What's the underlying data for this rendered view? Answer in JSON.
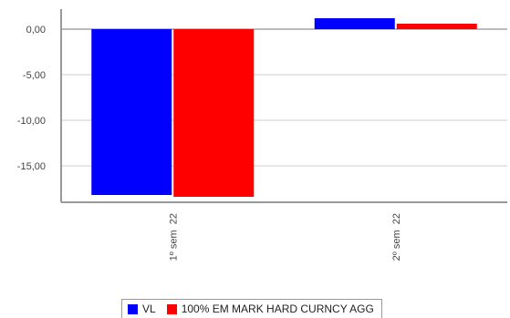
{
  "chart_data": {
    "type": "bar",
    "categories": [
      "1º sem  22",
      "2º sem  22"
    ],
    "series": [
      {
        "name": "VL",
        "color": "#0000ff",
        "values": [
          -18.2,
          1.2
        ]
      },
      {
        "name": "100% EM MARK HARD CURNCY AGG",
        "color": "#ff0000",
        "values": [
          -18.4,
          0.6
        ]
      }
    ],
    "ylim": [
      -19.0,
      2.2
    ],
    "yticks": [
      0,
      -5,
      -10,
      -15
    ],
    "ytick_labels": [
      "0,00",
      "-5,00",
      "-10,00",
      "-15,00"
    ],
    "grid": true,
    "legend_position": "bottom"
  }
}
